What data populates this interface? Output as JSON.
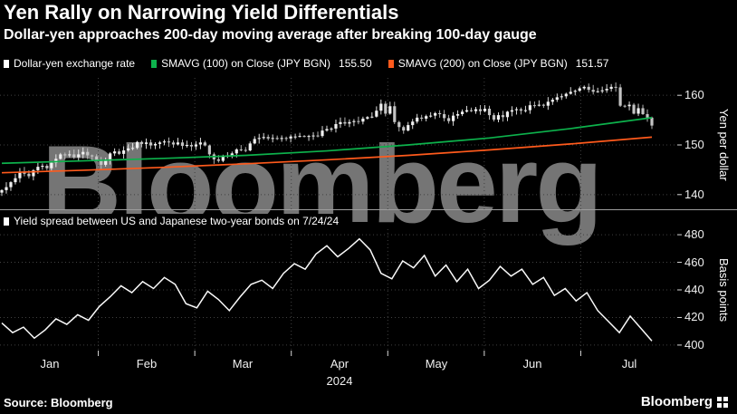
{
  "header": {
    "title": "Yen Rally on Narrowing Yield Differentials",
    "subtitle": "Dollar-yen approaches 200-day moving average after breaking 100-day gauge"
  },
  "legend_top": {
    "items": [
      {
        "label": "Dollar-yen exchange rate",
        "color": "#ffffff"
      },
      {
        "label": "SMAVG (100)  on Close (JPY BGN)",
        "value": "155.50",
        "color": "#0db24c"
      },
      {
        "label": "SMAVG (200)  on Close (JPY BGN)",
        "value": "151.57",
        "color": "#ff5a1c"
      }
    ]
  },
  "legend_bottom": {
    "label": "Yield spread between US and Japanese two-year bonds on 7/24/24",
    "color": "#ffffff"
  },
  "watermark": {
    "text": "Bloomberg"
  },
  "axis": {
    "months": [
      "Jan",
      "Feb",
      "Mar",
      "Apr",
      "May",
      "Jun",
      "Jul"
    ],
    "year": "2024"
  },
  "footer": {
    "source": "Source: Bloomberg",
    "logo_text": "Bloomberg"
  },
  "chart_data": [
    {
      "type": "candlestick",
      "name": "Dollar-yen exchange rate",
      "ylabel": "Yen per dollar",
      "ylim": [
        136.5,
        163.5
      ],
      "yticks": [
        160,
        150,
        140
      ],
      "up_color": "#f1f1f1",
      "down_color": "#c4c4c4",
      "closes": [
        140.9,
        141.5,
        142.5,
        143.3,
        144.6,
        144.2,
        143.7,
        144.9,
        145.6,
        145.8,
        145.3,
        146.4,
        147.2,
        148.1,
        147.9,
        148.1,
        147.5,
        148.1,
        148.6,
        147.9,
        147.7,
        146.9,
        146.0,
        146.8,
        148.3,
        148.7,
        148.2,
        148.9,
        149.3,
        149.4,
        150.6,
        150.2,
        150.5,
        149.9,
        150.2,
        150.5,
        150.7,
        150.5,
        150.1,
        150.5,
        149.8,
        150.0,
        149.7,
        150.1,
        150.5,
        149.9,
        148.1,
        147.1,
        146.8,
        147.7,
        147.9,
        148.3,
        149.1,
        149.0,
        148.9,
        150.3,
        151.2,
        151.4,
        151.6,
        151.3,
        151.4,
        151.2,
        151.4,
        151.3,
        151.7,
        151.7,
        151.8,
        151.7,
        151.8,
        151.9,
        151.8,
        152.9,
        153.2,
        153.3,
        154.2,
        154.6,
        154.3,
        154.6,
        154.8,
        154.7,
        155.3,
        155.6,
        155.7,
        156.9,
        158.3,
        156.3,
        157.8,
        154.6,
        153.6,
        152.9,
        154.0,
        154.7,
        155.5,
        155.3,
        155.8,
        155.9,
        156.4,
        156.2,
        155.4,
        154.8,
        155.9,
        156.2,
        156.7,
        157.0,
        156.8,
        157.2,
        156.8,
        157.3,
        156.0,
        155.1,
        156.0,
        155.6,
        156.7,
        157.0,
        157.2,
        156.9,
        157.0,
        158.0,
        157.9,
        158.1,
        157.9,
        158.7,
        159.1,
        159.6,
        159.8,
        160.3,
        160.7,
        160.9,
        161.4,
        161.7,
        161.1,
        160.7,
        160.8,
        161.0,
        161.3,
        161.7,
        161.6,
        157.9,
        157.8,
        158.1,
        156.3,
        157.4,
        156.2,
        155.5,
        153.9
      ],
      "series": [
        {
          "name": "SMAVG (200) on Close (JPY BGN)",
          "color": "#ff5a1c",
          "values": [
            144.4,
            144.9,
            145.5,
            146.2,
            147.0,
            147.9,
            149.0,
            150.2,
            151.57
          ]
        },
        {
          "name": "SMAVG (100) on Close (JPY BGN)",
          "color": "#0db24c",
          "values": [
            146.3,
            146.8,
            147.3,
            147.9,
            148.8,
            150.0,
            151.4,
            153.3,
            155.5
          ]
        }
      ]
    },
    {
      "type": "line",
      "name": "Yield spread between US and Japanese two-year bonds on 7/24/24",
      "ylabel": "Basis points",
      "ylim": [
        396,
        484
      ],
      "yticks": [
        480,
        460,
        440,
        420,
        400
      ],
      "color": "#fafafa",
      "values": [
        416,
        409,
        413,
        405,
        411,
        419,
        415,
        422,
        418,
        428,
        435,
        443,
        438,
        446,
        441,
        449,
        444,
        430,
        427,
        439,
        433,
        425,
        435,
        444,
        447,
        441,
        452,
        459,
        455,
        466,
        472,
        464,
        470,
        477,
        469,
        452,
        448,
        461,
        456,
        465,
        450,
        458,
        446,
        455,
        441,
        447,
        457,
        450,
        455,
        444,
        449,
        436,
        441,
        432,
        438,
        425,
        417,
        409,
        421,
        412,
        403
      ]
    }
  ]
}
